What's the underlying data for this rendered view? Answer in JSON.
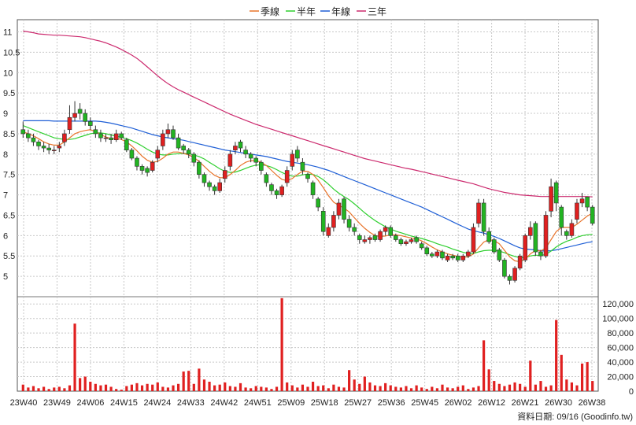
{
  "chart_data": {
    "type": "candlestick",
    "legend": [
      {
        "name": "季線",
        "color": "#e8742b"
      },
      {
        "name": "半年",
        "color": "#2fcf2f"
      },
      {
        "name": "年線",
        "color": "#1f5fd6"
      },
      {
        "name": "三年",
        "color": "#cc2a6e"
      }
    ],
    "price_axis": {
      "min": 4.5,
      "max": 11.3,
      "ticks": [
        "11",
        "10.5",
        "10",
        "9.5",
        "9",
        "8.5",
        "8",
        "7.5",
        "7",
        "6.5",
        "6",
        "5.5",
        "5"
      ]
    },
    "volume_axis": {
      "min": 0,
      "max": 130000,
      "ticks": [
        "120,000",
        "100,000",
        "80,000",
        "60,000",
        "40,000",
        "20,000",
        "0"
      ]
    },
    "x_labels": [
      "23W40",
      "23W49",
      "24W06",
      "24W15",
      "24W24",
      "24W33",
      "24W42",
      "24W51",
      "25W09",
      "25W18",
      "25W27",
      "25W36",
      "25W45",
      "26W02",
      "26W12",
      "26W21",
      "26W30",
      "26W38"
    ],
    "footer": "資料日期: 09/16  (Goodinfo.tw)",
    "series": {
      "close": [
        8.5,
        8.4,
        8.3,
        8.2,
        8.15,
        8.1,
        8.1,
        8.2,
        8.5,
        8.9,
        9.0,
        9.0,
        8.8,
        8.7,
        8.5,
        8.4,
        8.4,
        8.35,
        8.5,
        8.4,
        8.1,
        7.9,
        7.7,
        7.6,
        7.55,
        7.8,
        8.1,
        8.5,
        8.6,
        8.4,
        8.15,
        8.1,
        8.0,
        7.8,
        7.5,
        7.3,
        7.2,
        7.1,
        7.3,
        7.6,
        8.0,
        8.2,
        8.15,
        8.0,
        7.9,
        7.8,
        7.6,
        7.3,
        7.1,
        7.0,
        7.2,
        7.6,
        8.0,
        7.9,
        7.6,
        7.4,
        7.0,
        6.7,
        6.1,
        6.2,
        6.5,
        6.8,
        6.4,
        6.2,
        6.1,
        5.9,
        5.9,
        5.95,
        5.9,
        6.1,
        6.2,
        6.0,
        5.9,
        5.8,
        5.85,
        5.9,
        5.85,
        5.7,
        5.55,
        5.5,
        5.6,
        5.45,
        5.5,
        5.45,
        5.4,
        5.5,
        5.6,
        6.2,
        6.8,
        6.1,
        5.85,
        5.6,
        5.4,
        5.0,
        4.9,
        5.2,
        5.5,
        6.0,
        6.2,
        5.6,
        5.5,
        6.5,
        7.2,
        6.8,
        6.2,
        6.0,
        6.3,
        6.8,
        6.9,
        6.7,
        6.3
      ],
      "open": [
        8.6,
        8.5,
        8.4,
        8.3,
        8.2,
        8.15,
        8.1,
        8.15,
        8.3,
        8.6,
        8.9,
        9.1,
        9.0,
        8.8,
        8.6,
        8.5,
        8.4,
        8.4,
        8.35,
        8.5,
        8.35,
        8.1,
        7.9,
        7.7,
        7.65,
        7.6,
        7.9,
        8.2,
        8.5,
        8.6,
        8.4,
        8.2,
        8.1,
        8.0,
        7.8,
        7.5,
        7.3,
        7.2,
        7.1,
        7.4,
        7.7,
        8.1,
        8.3,
        8.1,
        8.0,
        7.9,
        7.8,
        7.5,
        7.25,
        7.1,
        7.0,
        7.3,
        7.7,
        8.1,
        7.8,
        7.5,
        7.3,
        6.9,
        6.6,
        6.0,
        6.2,
        6.5,
        6.9,
        6.4,
        6.2,
        6.0,
        5.85,
        5.9,
        6.0,
        5.9,
        6.1,
        6.2,
        6.0,
        5.9,
        5.8,
        5.85,
        5.95,
        5.8,
        5.7,
        5.55,
        5.5,
        5.6,
        5.4,
        5.5,
        5.5,
        5.4,
        5.5,
        5.6,
        6.3,
        6.8,
        6.1,
        5.9,
        5.65,
        5.4,
        5.0,
        4.9,
        5.2,
        5.4,
        6.0,
        6.3,
        5.6,
        5.5,
        6.6,
        7.3,
        6.7,
        6.1,
        6.0,
        6.4,
        6.8,
        6.95,
        6.7
      ],
      "high": [
        8.8,
        8.6,
        8.5,
        8.35,
        8.3,
        8.25,
        8.2,
        8.3,
        8.6,
        9.2,
        9.3,
        9.25,
        9.1,
        8.9,
        8.7,
        8.6,
        8.5,
        8.5,
        8.6,
        8.55,
        8.4,
        8.15,
        7.95,
        7.75,
        7.7,
        7.85,
        8.2,
        8.6,
        8.75,
        8.7,
        8.5,
        8.25,
        8.15,
        8.05,
        7.85,
        7.55,
        7.35,
        7.25,
        7.4,
        7.7,
        8.1,
        8.3,
        8.35,
        8.2,
        8.05,
        7.95,
        7.85,
        7.55,
        7.3,
        7.15,
        7.25,
        7.7,
        8.1,
        8.2,
        7.9,
        7.55,
        7.35,
        6.95,
        6.7,
        6.3,
        6.6,
        6.9,
        6.95,
        6.5,
        6.3,
        6.05,
        6.0,
        6.0,
        6.05,
        6.15,
        6.25,
        6.25,
        6.05,
        5.95,
        5.9,
        5.95,
        6.0,
        5.85,
        5.75,
        5.6,
        5.65,
        5.65,
        5.55,
        5.55,
        5.55,
        5.55,
        5.65,
        6.3,
        6.9,
        6.9,
        6.2,
        5.95,
        5.7,
        5.45,
        5.05,
        5.25,
        5.55,
        6.05,
        6.35,
        6.35,
        5.65,
        6.6,
        7.4,
        7.35,
        6.75,
        6.15,
        6.4,
        6.9,
        7.05,
        6.95,
        6.75
      ],
      "low": [
        8.4,
        8.3,
        8.2,
        8.1,
        8.05,
        8.0,
        8.0,
        8.05,
        8.2,
        8.5,
        8.8,
        8.85,
        8.7,
        8.6,
        8.4,
        8.3,
        8.3,
        8.25,
        8.3,
        8.35,
        8.05,
        7.85,
        7.6,
        7.5,
        7.45,
        7.55,
        7.8,
        8.1,
        8.4,
        8.35,
        8.1,
        8.0,
        7.9,
        7.7,
        7.4,
        7.2,
        7.1,
        7.0,
        7.05,
        7.3,
        7.6,
        8.0,
        8.05,
        7.9,
        7.8,
        7.7,
        7.5,
        7.2,
        7.0,
        6.9,
        6.95,
        7.2,
        7.6,
        7.8,
        7.5,
        7.3,
        6.9,
        6.6,
        6.0,
        5.95,
        6.1,
        6.4,
        6.3,
        6.1,
        6.0,
        5.8,
        5.8,
        5.8,
        5.85,
        5.85,
        6.0,
        5.95,
        5.85,
        5.75,
        5.75,
        5.8,
        5.8,
        5.65,
        5.5,
        5.45,
        5.45,
        5.4,
        5.35,
        5.4,
        5.35,
        5.35,
        5.45,
        5.55,
        6.2,
        6.0,
        5.8,
        5.55,
        5.35,
        4.95,
        4.8,
        4.85,
        5.15,
        5.35,
        5.9,
        5.5,
        5.4,
        5.45,
        6.45,
        6.6,
        6.0,
        5.9,
        5.95,
        6.3,
        6.7,
        6.6,
        6.25
      ],
      "ma_quarter": [
        8.55,
        8.5,
        8.45,
        8.38,
        8.3,
        8.25,
        8.22,
        8.22,
        8.3,
        8.4,
        8.5,
        8.55,
        8.58,
        8.6,
        8.55,
        8.48,
        8.42,
        8.38,
        8.38,
        8.36,
        8.3,
        8.2,
        8.08,
        7.95,
        7.85,
        7.8,
        7.82,
        7.9,
        8.0,
        8.05,
        8.05,
        8.02,
        7.98,
        7.92,
        7.82,
        7.7,
        7.58,
        7.48,
        7.42,
        7.42,
        7.5,
        7.6,
        7.72,
        7.8,
        7.84,
        7.84,
        7.8,
        7.72,
        7.6,
        7.48,
        7.38,
        7.35,
        7.4,
        7.5,
        7.58,
        7.58,
        7.5,
        7.36,
        7.18,
        6.98,
        6.82,
        6.74,
        6.68,
        6.58,
        6.44,
        6.3,
        6.18,
        6.08,
        6.0,
        5.98,
        5.99,
        6.02,
        6.02,
        6.0,
        5.97,
        5.94,
        5.92,
        5.87,
        5.8,
        5.72,
        5.65,
        5.6,
        5.55,
        5.52,
        5.49,
        5.47,
        5.48,
        5.55,
        5.7,
        5.84,
        5.9,
        5.88,
        5.8,
        5.64,
        5.48,
        5.38,
        5.36,
        5.42,
        5.55,
        5.64,
        5.62,
        5.7,
        5.9,
        6.1,
        6.2,
        6.2,
        6.2,
        6.28,
        6.38,
        6.48,
        6.55
      ],
      "ma_half": [
        8.7,
        8.65,
        8.6,
        8.55,
        8.5,
        8.45,
        8.4,
        8.38,
        8.36,
        8.36,
        8.38,
        8.42,
        8.46,
        8.5,
        8.52,
        8.52,
        8.5,
        8.47,
        8.44,
        8.41,
        8.38,
        8.33,
        8.27,
        8.2,
        8.12,
        8.05,
        8.0,
        7.98,
        7.98,
        8.0,
        8.01,
        8.02,
        8.01,
        7.98,
        7.94,
        7.88,
        7.8,
        7.72,
        7.64,
        7.58,
        7.55,
        7.56,
        7.6,
        7.65,
        7.7,
        7.73,
        7.74,
        7.72,
        7.68,
        7.62,
        7.55,
        7.49,
        7.46,
        7.46,
        7.49,
        7.51,
        7.5,
        7.45,
        7.37,
        7.26,
        7.14,
        7.04,
        6.96,
        6.88,
        6.78,
        6.67,
        6.56,
        6.46,
        6.37,
        6.29,
        6.22,
        6.16,
        6.11,
        6.07,
        6.03,
        5.99,
        5.96,
        5.93,
        5.89,
        5.85,
        5.8,
        5.76,
        5.72,
        5.67,
        5.63,
        5.59,
        5.56,
        5.56,
        5.6,
        5.63,
        5.64,
        5.64,
        5.62,
        5.58,
        5.53,
        5.49,
        5.46,
        5.46,
        5.5,
        5.52,
        5.51,
        5.54,
        5.62,
        5.72,
        5.8,
        5.86,
        5.9,
        5.96,
        6.0,
        6.02,
        6.03
      ],
      "ma_year": [
        8.82,
        8.82,
        8.82,
        8.82,
        8.82,
        8.82,
        8.81,
        8.81,
        8.81,
        8.81,
        8.81,
        8.81,
        8.81,
        8.81,
        8.81,
        8.8,
        8.78,
        8.76,
        8.73,
        8.7,
        8.67,
        8.64,
        8.6,
        8.56,
        8.52,
        8.48,
        8.45,
        8.42,
        8.4,
        8.38,
        8.36,
        8.34,
        8.31,
        8.28,
        8.25,
        8.22,
        8.19,
        8.16,
        8.13,
        8.1,
        8.08,
        8.06,
        8.04,
        8.02,
        8.0,
        7.98,
        7.96,
        7.94,
        7.91,
        7.88,
        7.85,
        7.82,
        7.8,
        7.78,
        7.76,
        7.74,
        7.71,
        7.68,
        7.64,
        7.6,
        7.55,
        7.5,
        7.45,
        7.4,
        7.35,
        7.3,
        7.25,
        7.2,
        7.15,
        7.1,
        7.05,
        7.0,
        6.95,
        6.9,
        6.85,
        6.8,
        6.75,
        6.7,
        6.64,
        6.58,
        6.52,
        6.46,
        6.4,
        6.34,
        6.28,
        6.22,
        6.16,
        6.12,
        6.09,
        6.06,
        6.02,
        5.98,
        5.93,
        5.87,
        5.81,
        5.75,
        5.7,
        5.67,
        5.66,
        5.65,
        5.63,
        5.62,
        5.63,
        5.65,
        5.68,
        5.71,
        5.74,
        5.77,
        5.8,
        5.83,
        5.85
      ],
      "ma_3yr": [
        11.02,
        11.0,
        10.98,
        10.95,
        10.94,
        10.93,
        10.92,
        10.92,
        10.91,
        10.9,
        10.89,
        10.88,
        10.86,
        10.83,
        10.8,
        10.77,
        10.73,
        10.68,
        10.63,
        10.57,
        10.5,
        10.43,
        10.35,
        10.25,
        10.14,
        10.03,
        9.92,
        9.82,
        9.73,
        9.65,
        9.58,
        9.52,
        9.46,
        9.4,
        9.34,
        9.28,
        9.22,
        9.16,
        9.1,
        9.04,
        8.98,
        8.93,
        8.88,
        8.83,
        8.78,
        8.73,
        8.69,
        8.65,
        8.61,
        8.57,
        8.53,
        8.49,
        8.45,
        8.41,
        8.37,
        8.33,
        8.29,
        8.25,
        8.21,
        8.17,
        8.13,
        8.09,
        8.05,
        8.01,
        7.97,
        7.93,
        7.89,
        7.86,
        7.83,
        7.8,
        7.77,
        7.74,
        7.71,
        7.68,
        7.65,
        7.63,
        7.6,
        7.57,
        7.54,
        7.51,
        7.48,
        7.45,
        7.42,
        7.39,
        7.36,
        7.33,
        7.3,
        7.27,
        7.23,
        7.19,
        7.15,
        7.12,
        7.09,
        7.06,
        7.04,
        7.02,
        7.0,
        6.99,
        6.98,
        6.97,
        6.96,
        6.96,
        6.96,
        6.96,
        6.96,
        6.96,
        6.96,
        6.96,
        6.96,
        6.96,
        6.95
      ],
      "volume": [
        9000,
        5000,
        7000,
        4000,
        6000,
        3000,
        5000,
        6000,
        4000,
        8000,
        93000,
        18000,
        20000,
        13000,
        10000,
        8000,
        9000,
        6000,
        3000,
        2000,
        7000,
        9000,
        11000,
        8000,
        10000,
        9000,
        12000,
        6000,
        5000,
        8000,
        10000,
        27000,
        28000,
        10000,
        31000,
        16000,
        13000,
        8000,
        9000,
        12000,
        7000,
        6000,
        11000,
        5000,
        4000,
        7000,
        6000,
        5000,
        3000,
        6000,
        128000,
        12000,
        8000,
        5000,
        9000,
        6000,
        13000,
        7000,
        8000,
        4000,
        9000,
        6000,
        5000,
        29000,
        16000,
        10000,
        20000,
        12000,
        8000,
        7000,
        11000,
        8000,
        6000,
        5000,
        7000,
        4000,
        8000,
        5000,
        3000,
        6000,
        4000,
        9000,
        5000,
        4000,
        6000,
        8000,
        3000,
        5000,
        7000,
        70000,
        30000,
        14000,
        10000,
        7000,
        9000,
        12000,
        10000,
        6000,
        42000,
        9000,
        14000,
        6000,
        8000,
        98000,
        50000,
        16000,
        12000,
        8000,
        38000,
        40000,
        14000
      ]
    }
  }
}
